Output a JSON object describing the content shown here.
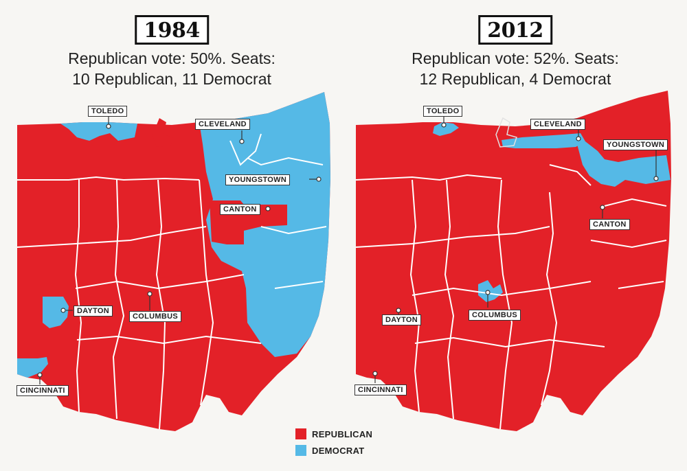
{
  "colors": {
    "republican": "#e32128",
    "democrat": "#55b9e6",
    "border": "#ffffff"
  },
  "maps": [
    {
      "year": "1984",
      "subtitle_line1": "Republican vote: 50%. Seats:",
      "subtitle_line2": "10 Republican, 11 Democrat",
      "republican_vote_percent": 50,
      "seats": {
        "republican": 10,
        "democrat": 11
      },
      "cities": {
        "toledo": "TOLEDO",
        "cleveland": "CLEVELAND",
        "youngstown": "YOUNGSTOWN",
        "canton": "CANTON",
        "dayton": "DAYTON",
        "columbus": "COLUMBUS",
        "cincinnati": "CINCINNATI"
      }
    },
    {
      "year": "2012",
      "subtitle_line1": "Republican vote: 52%. Seats:",
      "subtitle_line2": "12 Republican, 4 Democrat",
      "republican_vote_percent": 52,
      "seats": {
        "republican": 12,
        "democrat": 4
      },
      "cities": {
        "toledo": "TOLEDO",
        "cleveland": "CLEVELAND",
        "youngstown": "YOUNGSTOWN",
        "canton": "CANTON",
        "dayton": "DAYTON",
        "columbus": "COLUMBUS",
        "cincinnati": "CINCINNATI"
      }
    }
  ],
  "legend": [
    {
      "label": "REPUBLICAN",
      "party": "republican"
    },
    {
      "label": "DEMOCRAT",
      "party": "democrat"
    }
  ]
}
